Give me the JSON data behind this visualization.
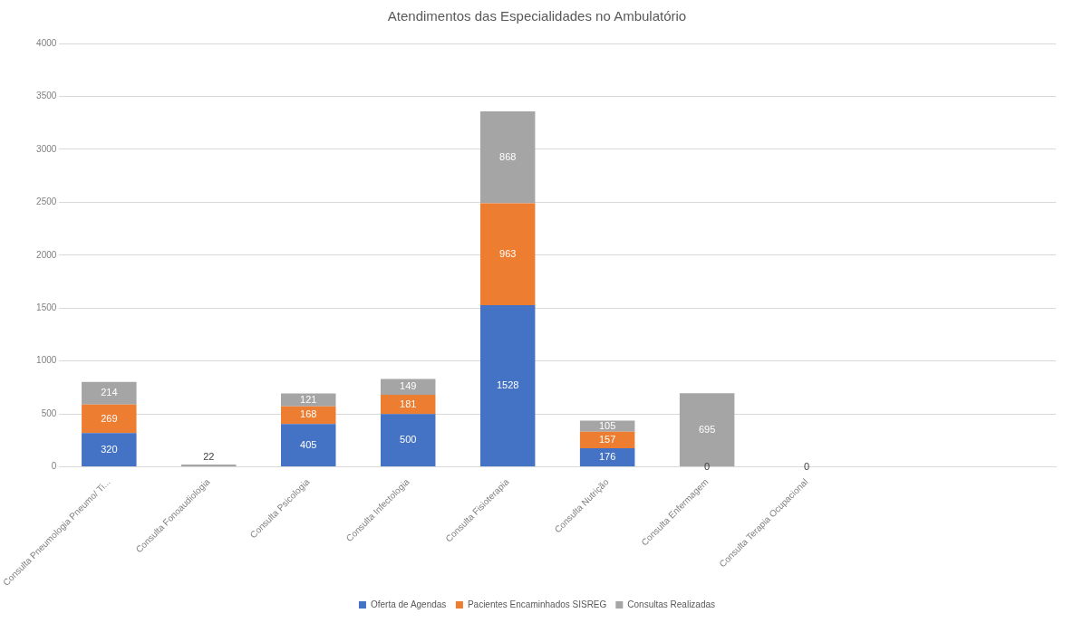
{
  "chart_data": {
    "type": "bar",
    "title": "Atendimentos das Especialidades no Ambulatório",
    "categories": [
      "Consulta Pneumologia Pneumo/ Ti...",
      "Consulta Fonoaudiologia",
      "Consulta Psicologia",
      "Consulta Infectologia",
      "Consulta Fisioterapia",
      "Consulta Nutrição",
      "Consulta Enfermagem",
      "Consulta Terapia Ocupacional",
      null,
      null
    ],
    "stacked": true,
    "series": [
      {
        "name": "Oferta de Agendas",
        "color": "#4472c4",
        "values": [
          320,
          null,
          405,
          500,
          1528,
          176,
          null,
          0,
          null,
          null
        ]
      },
      {
        "name": "Pacientes Encaminhados SISREG",
        "color": "#ed7d31",
        "values": [
          269,
          null,
          168,
          181,
          963,
          157,
          null,
          null,
          null,
          null
        ]
      },
      {
        "name": "Consultas Realizadas",
        "color": "#a5a5a5",
        "values": [
          214,
          22,
          121,
          149,
          868,
          105,
          695,
          null,
          null,
          null
        ]
      }
    ],
    "ylim": [
      0,
      4000
    ],
    "yticks": [
      0,
      500,
      1000,
      1500,
      2000,
      2500,
      3000,
      3500,
      4000
    ],
    "annotations": [
      {
        "text": "0",
        "x": "Consulta Enfermagem",
        "y": 0
      }
    ],
    "grid": "y",
    "legend": "bottom",
    "data_labels": true
  }
}
